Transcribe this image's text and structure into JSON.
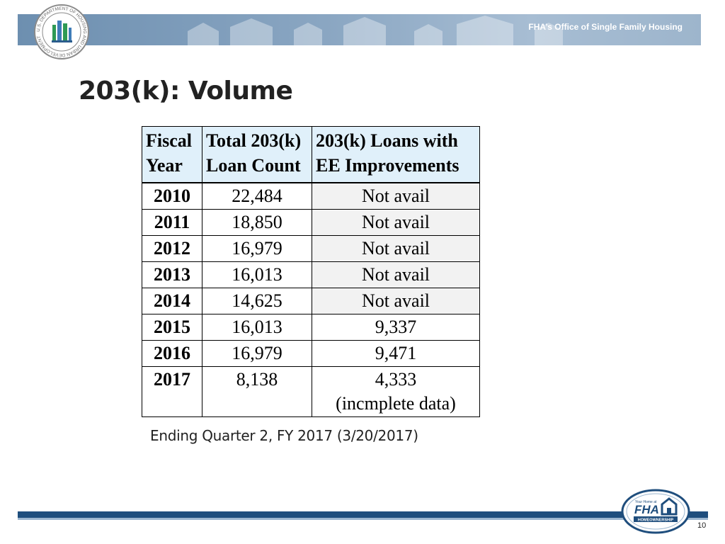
{
  "header": {
    "banner_text": "FHA’s Office of Single Family Housing",
    "seal_text": "U.S. DEPARTMENT OF HOUSING AND URBAN DEVELOPMENT"
  },
  "slide": {
    "title": "203(k): Volume",
    "note": "Ending Quarter 2, FY 2017 (3/20/2017)",
    "page_number": "10"
  },
  "table": {
    "headers": [
      [
        "Fiscal",
        "Year"
      ],
      [
        "Total 203(k)",
        "Loan Count"
      ],
      [
        "203(k) Loans with",
        "EE Improvements"
      ]
    ],
    "rows": [
      {
        "year": "2010",
        "total": "22,484",
        "ee": "Not avail"
      },
      {
        "year": "2011",
        "total": "18,850",
        "ee": "Not avail"
      },
      {
        "year": "2012",
        "total": "16,979",
        "ee": "Not avail"
      },
      {
        "year": "2013",
        "total": "16,013",
        "ee": "Not avail"
      },
      {
        "year": "2014",
        "total": "14,625",
        "ee": "Not avail"
      },
      {
        "year": "2015",
        "total": "16,013",
        "ee": "9,337"
      },
      {
        "year": "2016",
        "total": "16,979",
        "ee": "9,471"
      },
      {
        "year": "2017",
        "total": "8,138",
        "ee": "4,333",
        "ee_note": "(incmplete data)"
      }
    ]
  },
  "logos": {
    "fha_small": "Your Home at",
    "fha_big": "FHA",
    "fha_caption": "HOMEOWNERSHIP"
  },
  "colors": {
    "banner": "#7f9dbb",
    "header_cell": "#e0f0fa",
    "na_cell": "#f2f2f2",
    "bottom_bar": "#1f4e7d"
  }
}
